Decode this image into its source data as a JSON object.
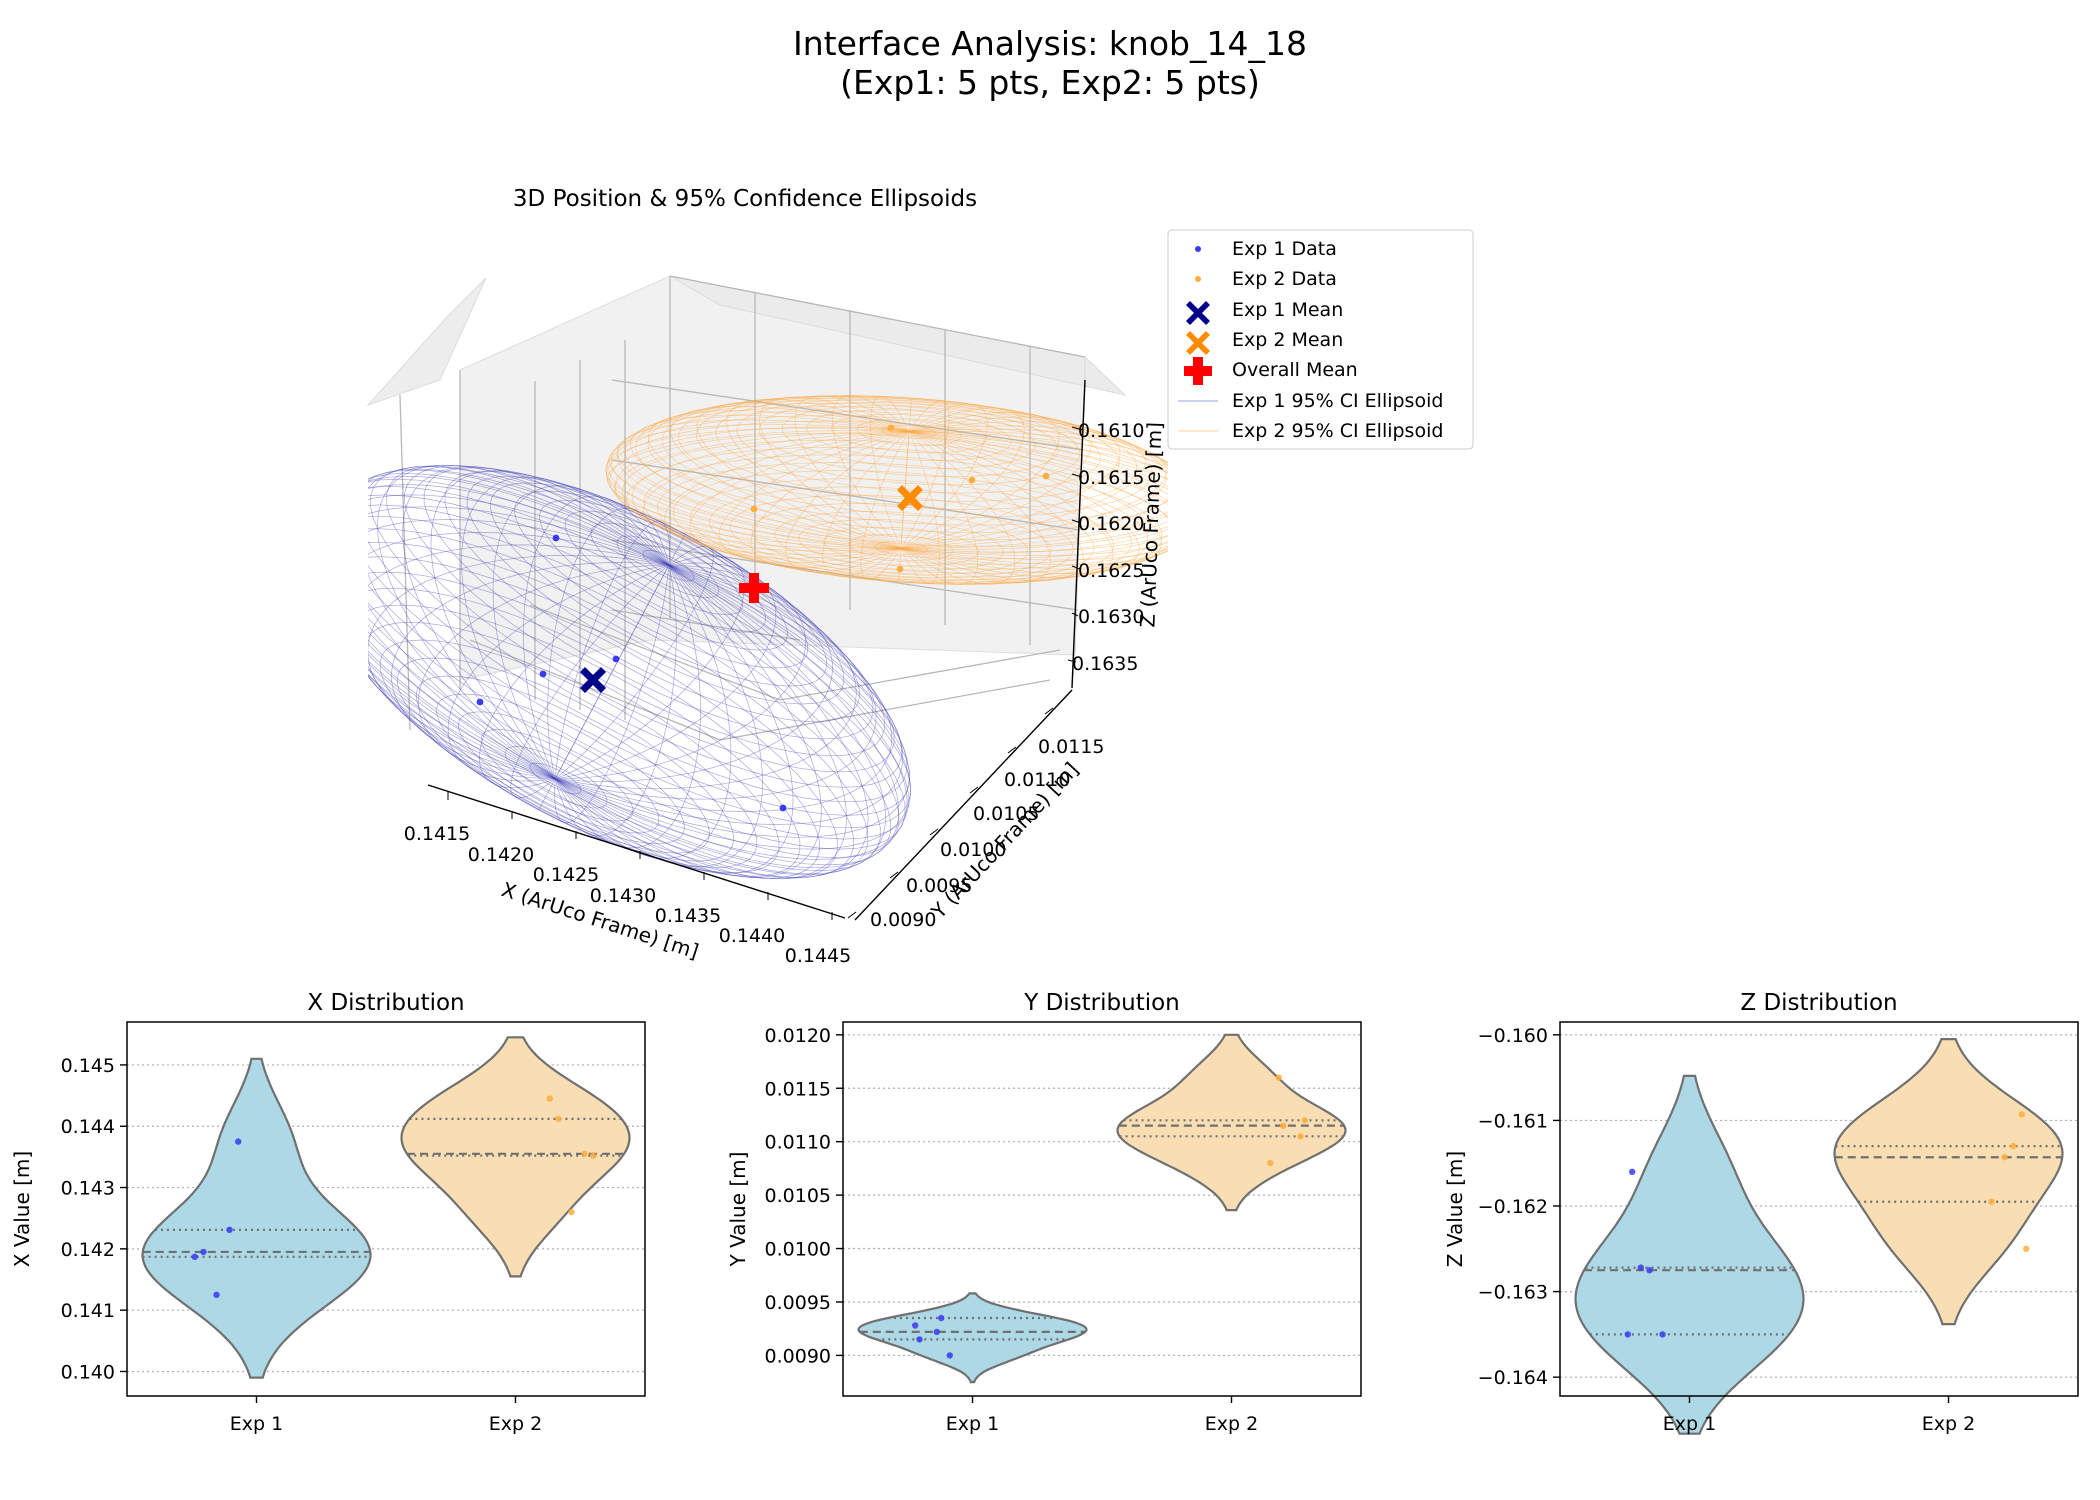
{
  "figure": {
    "title_line1": "Interface Analysis: knob_14_18",
    "title_line2": "(Exp1: 5 pts, Exp2: 5 pts)"
  },
  "colors": {
    "exp1_points": "#3a3af0",
    "exp2_points": "#ffae3d",
    "exp1_mean": "#00008b",
    "exp2_mean": "#ff8c00",
    "overall_mean": "#ff0000",
    "exp1_violin": "#add8e6",
    "exp2_violin": "#f9deb3",
    "exp1_ellipsoid": "#3f3fb8",
    "exp2_ellipsoid": "#ffa53a",
    "violin_edge": "#707070"
  },
  "legend": {
    "exp1_data": "Exp 1 Data",
    "exp2_data": "Exp 2 Data",
    "exp1_mean": "Exp 1 Mean",
    "exp2_mean": "Exp 2 Mean",
    "overall_mean": "Overall Mean",
    "exp1_ellipsoid": "Exp 1 95% CI Ellipsoid",
    "exp2_ellipsoid": "Exp 2 95% CI Ellipsoid"
  },
  "chart_data": [
    {
      "type": "scatter",
      "title": "3D Position & 95% Confidence Ellipsoids",
      "xlabel": "X (ArUco Frame) [m]",
      "ylabel": "Y (ArUco Frame) [m]",
      "zlabel": "Z (ArUco Frame) [m]",
      "x_ticks": [
        "0.1415",
        "0.1420",
        "0.1425",
        "0.1430",
        "0.1435",
        "0.1440",
        "0.1445"
      ],
      "y_ticks": [
        "0.0090",
        "0.0095",
        "0.0100",
        "0.0105",
        "0.0110",
        "0.0115"
      ],
      "z_ticks": [
        "0.1610",
        "0.1615",
        "0.1620",
        "0.1625",
        "0.1630",
        "0.1635"
      ],
      "legend_position": "upper right, outside plot",
      "series": [
        {
          "name": "Exp 1 Data",
          "points": [
            {
              "x": 0.14125,
              "y": 0.00928,
              "z": -0.1635
            },
            {
              "x": 0.14187,
              "y": 0.00935,
              "z": -0.16272
            },
            {
              "x": 0.14195,
              "y": 0.009,
              "z": -0.1635
            },
            {
              "x": 0.14231,
              "y": 0.00915,
              "z": -0.16275
            },
            {
              "x": 0.14375,
              "y": 0.00922,
              "z": -0.1616
            }
          ]
        },
        {
          "name": "Exp 2 Data",
          "points": [
            {
              "x": 0.1426,
              "y": 0.0116,
              "z": -0.16195
            },
            {
              "x": 0.14352,
              "y": 0.01105,
              "z": -0.1613
            },
            {
              "x": 0.14355,
              "y": 0.0108,
              "z": -0.1625
            },
            {
              "x": 0.14412,
              "y": 0.01115,
              "z": -0.16093
            },
            {
              "x": 0.14445,
              "y": 0.0112,
              "z": -0.16143
            }
          ]
        },
        {
          "name": "Exp 1 Mean",
          "x": 0.14223,
          "y": 0.0092,
          "z": -0.16281
        },
        {
          "name": "Exp 2 Mean",
          "x": 0.14365,
          "y": 0.01116,
          "z": -0.16162
        },
        {
          "name": "Overall Mean",
          "x": 0.14294,
          "y": 0.01018,
          "z": -0.16222
        }
      ]
    },
    {
      "type": "violin",
      "title": "X Distribution",
      "ylabel": "X Value [m]",
      "categories": [
        "Exp 1",
        "Exp 2"
      ],
      "ylim": [
        0.1396,
        0.1457
      ],
      "yticks": [
        "0.140",
        "0.141",
        "0.142",
        "0.143",
        "0.144",
        "0.145"
      ],
      "grid": "y dotted",
      "series": [
        {
          "name": "Exp 1",
          "values": [
            0.14375,
            0.14231,
            0.14195,
            0.14187,
            0.14125
          ],
          "min": 0.1399,
          "max": 0.1451,
          "q1": 0.14187,
          "median": 0.14195,
          "q3": 0.14231
        },
        {
          "name": "Exp 2",
          "values": [
            0.14445,
            0.14412,
            0.14355,
            0.14352,
            0.1426
          ],
          "min": 0.14155,
          "max": 0.14545,
          "q1": 0.14352,
          "median": 0.14355,
          "q3": 0.14412
        }
      ]
    },
    {
      "type": "violin",
      "title": "Y Distribution",
      "ylabel": "Y Value [m]",
      "categories": [
        "Exp 1",
        "Exp 2"
      ],
      "ylim": [
        0.00862,
        0.01212
      ],
      "yticks": [
        "0.0090",
        "0.0095",
        "0.0100",
        "0.0105",
        "0.0110",
        "0.0115",
        "0.0120"
      ],
      "grid": "y dotted",
      "series": [
        {
          "name": "Exp 1",
          "values": [
            0.00935,
            0.00928,
            0.00922,
            0.00915,
            0.009
          ],
          "min": 0.00875,
          "max": 0.00958,
          "q1": 0.00915,
          "median": 0.00922,
          "q3": 0.00935
        },
        {
          "name": "Exp 2",
          "values": [
            0.0116,
            0.0112,
            0.01115,
            0.01105,
            0.0108
          ],
          "min": 0.01036,
          "max": 0.012,
          "q1": 0.01105,
          "median": 0.01115,
          "q3": 0.0112
        }
      ]
    },
    {
      "type": "violin",
      "title": "Z Distribution",
      "ylabel": "Z Value [m]",
      "categories": [
        "Exp 1",
        "Exp 2"
      ],
      "ylim": [
        -0.16422,
        -0.15985
      ],
      "yticks": [
        "−0.164",
        "−0.163",
        "−0.162",
        "−0.161",
        "−0.160"
      ],
      "grid": "y dotted",
      "series": [
        {
          "name": "Exp 1",
          "values": [
            -0.1616,
            -0.16272,
            -0.16275,
            -0.1635,
            -0.1635
          ],
          "min": -0.16466,
          "max": -0.16048,
          "q1": -0.1635,
          "median": -0.16275,
          "q3": -0.16272
        },
        {
          "name": "Exp 2",
          "values": [
            -0.16093,
            -0.1613,
            -0.16143,
            -0.16195,
            -0.1625
          ],
          "min": -0.16338,
          "max": -0.16005,
          "q1": -0.16195,
          "median": -0.16143,
          "q3": -0.1613
        }
      ]
    }
  ]
}
